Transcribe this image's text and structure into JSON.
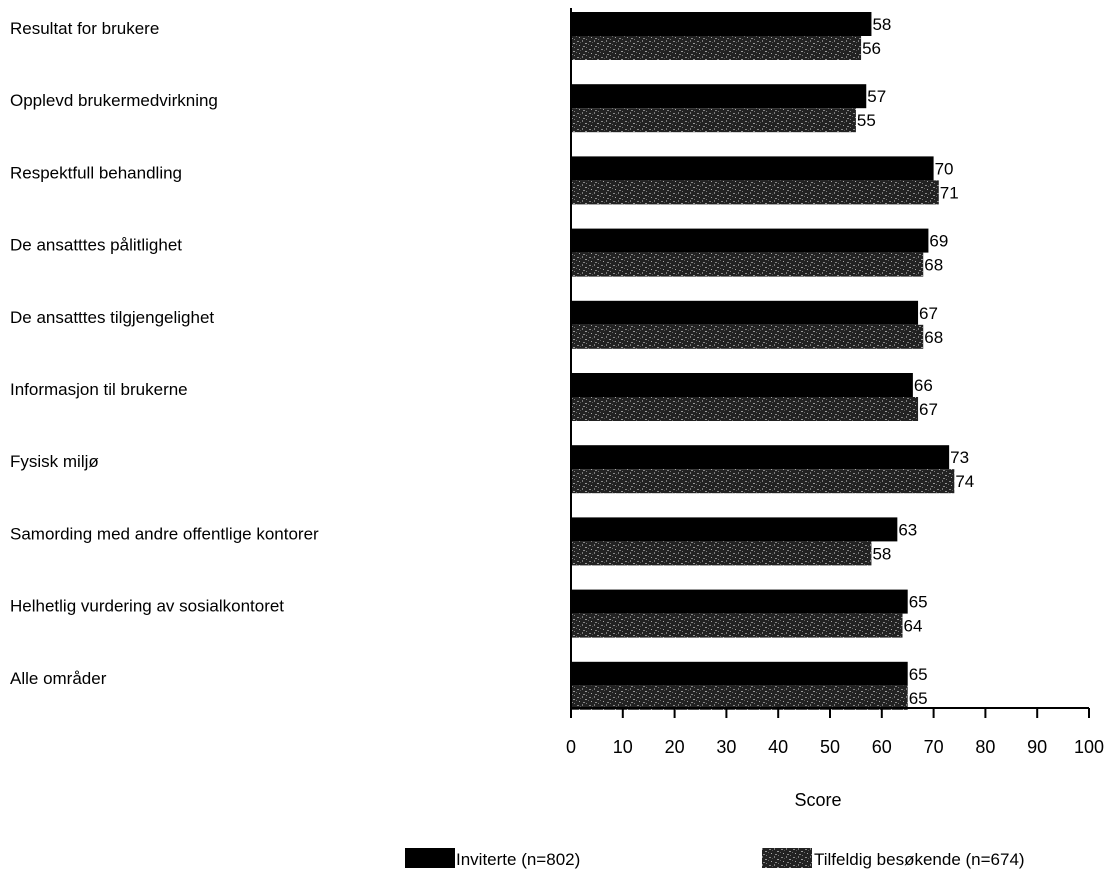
{
  "chart_data": {
    "type": "bar",
    "orientation": "horizontal",
    "categories": [
      "Resultat for brukere",
      "Opplevd brukermedvirkning",
      "Respektfull behandling",
      "De ansatttes pålitlighet",
      "De ansatttes tilgjengelighet",
      "Informasjon til brukerne",
      "Fysisk miljø",
      "Samording med andre offentlige kontorer",
      "Helhetlig vurdering av sosialkontoret",
      "Alle områder"
    ],
    "series": [
      {
        "name": "Inviterte (n=802)",
        "values": [
          58,
          57,
          70,
          69,
          67,
          66,
          73,
          63,
          65,
          65
        ],
        "color": "#000000",
        "pattern": "solid"
      },
      {
        "name": "Tilfeldig besøkende (n=674)",
        "values": [
          56,
          55,
          71,
          68,
          68,
          67,
          74,
          58,
          64,
          65
        ],
        "color": "#1a1a1a",
        "pattern": "speckled"
      }
    ],
    "xlabel": "Score",
    "xlim": [
      0,
      100
    ],
    "xticks": [
      0,
      10,
      20,
      30,
      40,
      50,
      60,
      70,
      80,
      90,
      100
    ],
    "grid": false,
    "legend_position": "bottom"
  }
}
